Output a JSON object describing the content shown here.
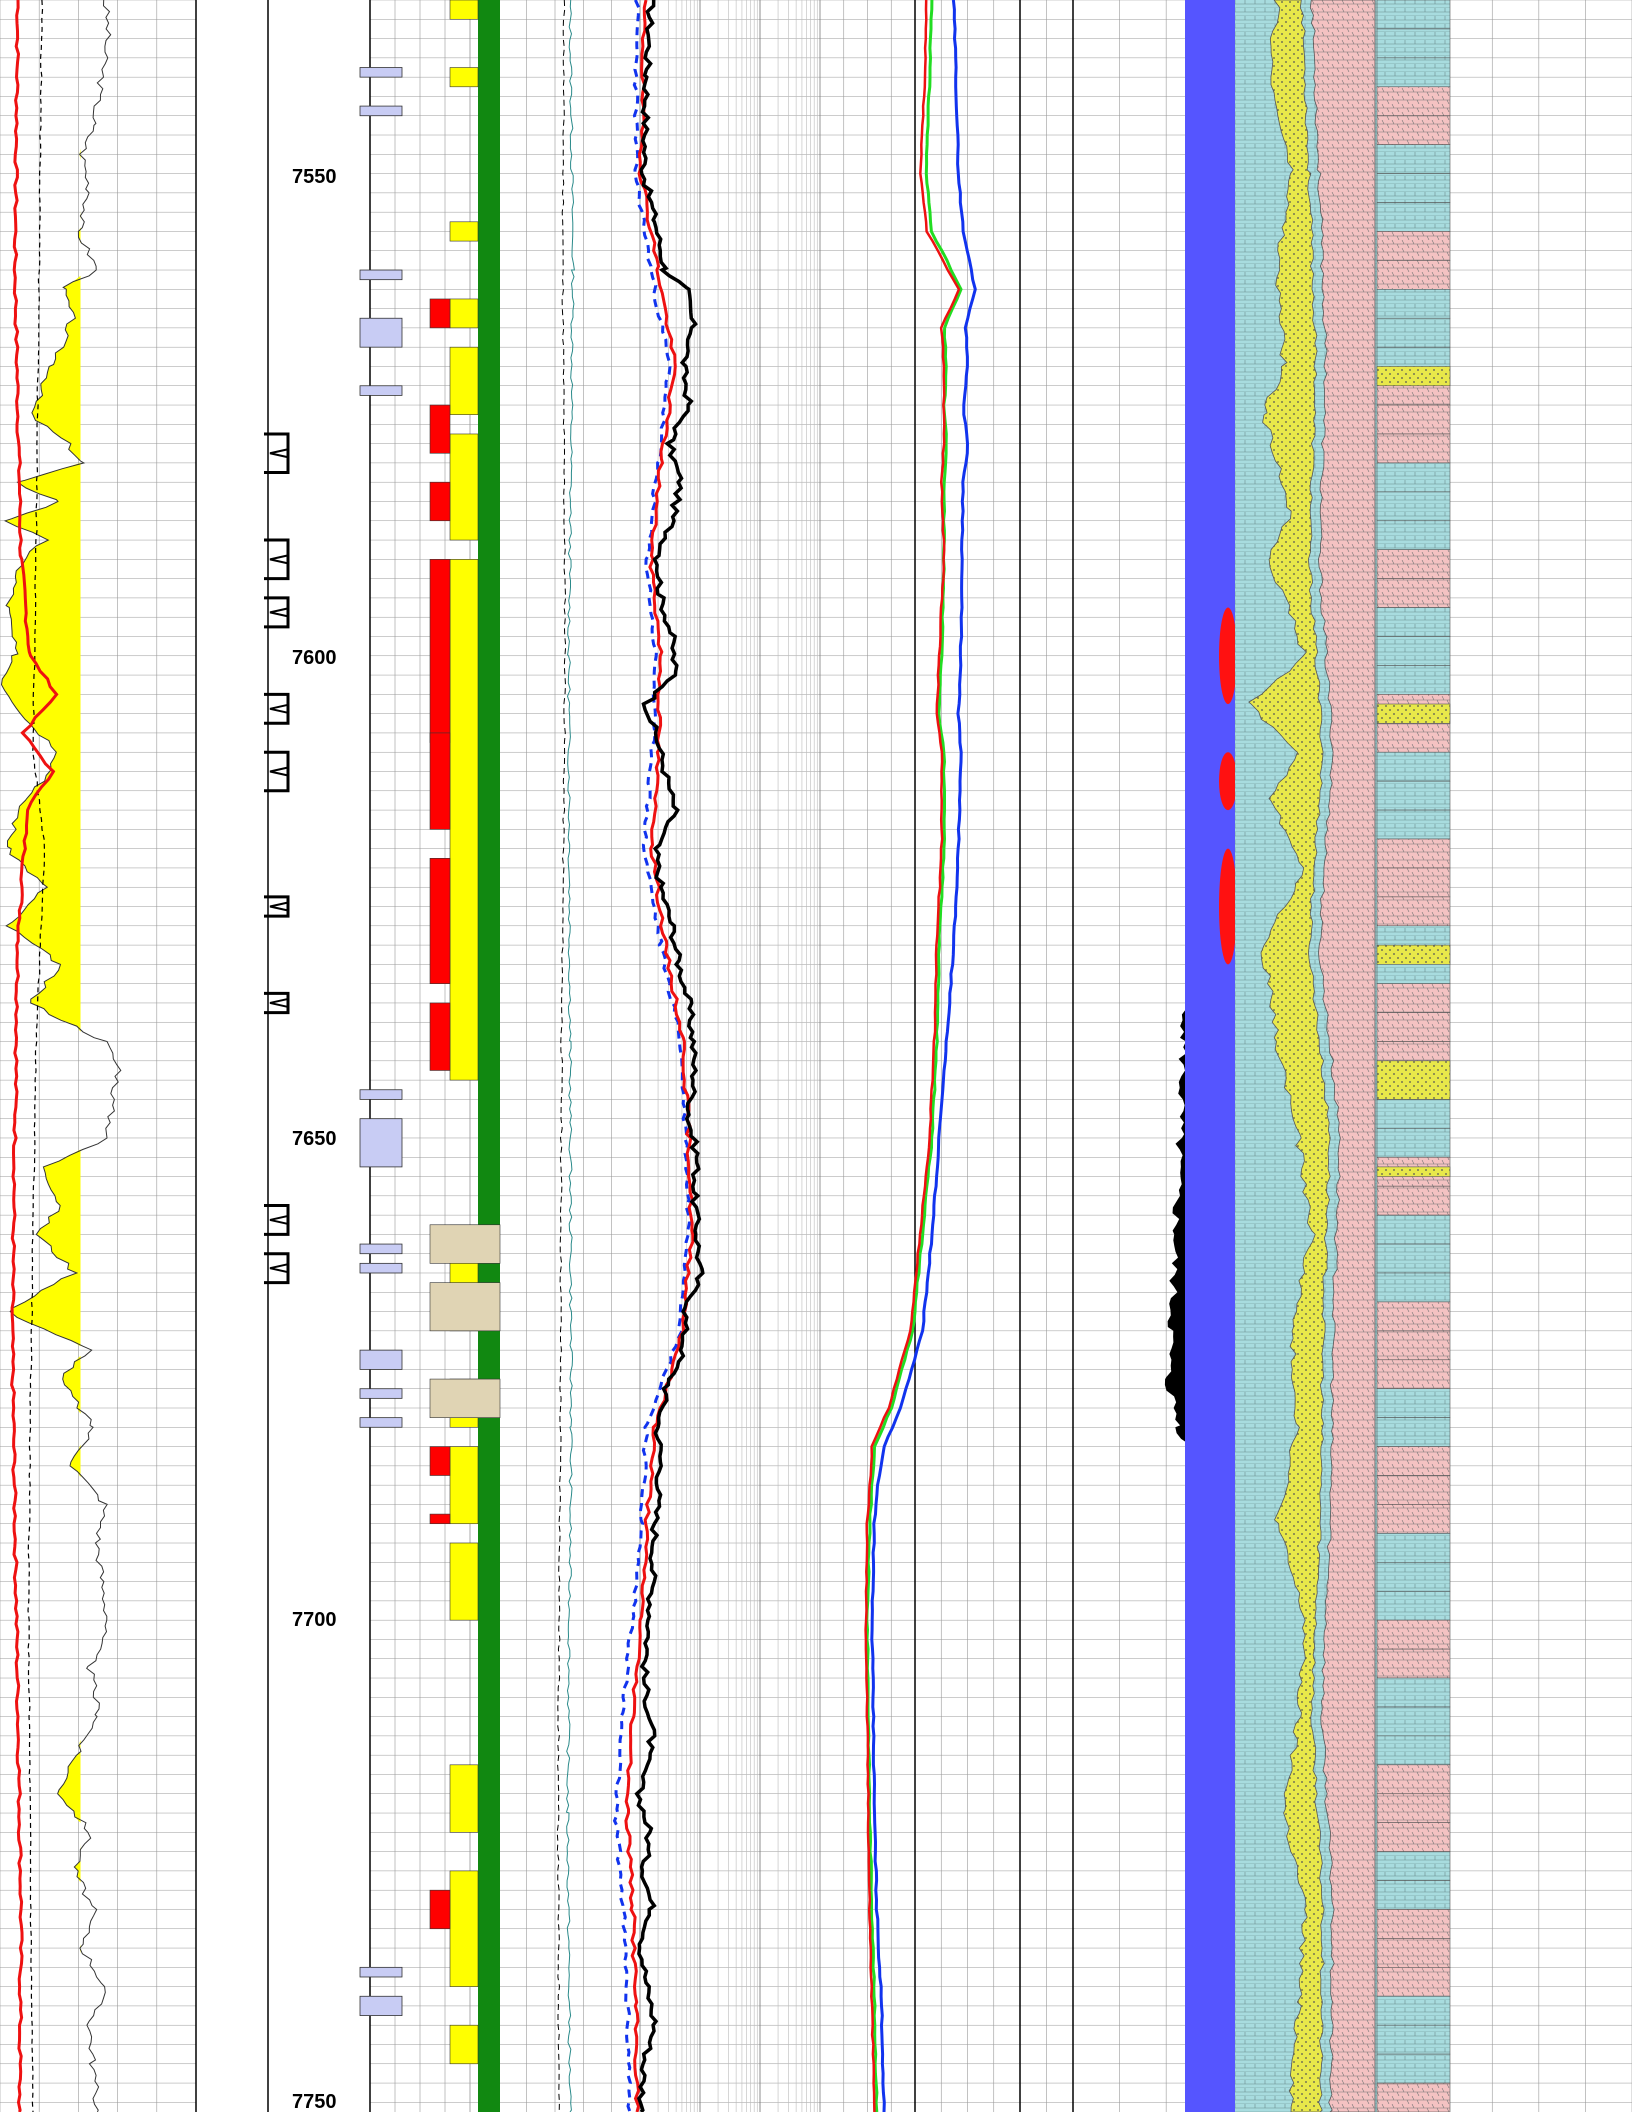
{
  "chart_data": {
    "type": "line",
    "title": "",
    "depth_ticks": [
      {
        "depth": 7550,
        "label": "7550"
      },
      {
        "depth": 7600,
        "label": "7600"
      },
      {
        "depth": 7650,
        "label": "7650"
      },
      {
        "depth": 7700,
        "label": "7700"
      },
      {
        "depth": 7750,
        "label": "7750"
      }
    ],
    "depth_range": [
      7532,
      7751
    ],
    "gamma_ray": {
      "cutoff": 0.55,
      "points": [
        [
          7532,
          0.7
        ],
        [
          7535,
          0.72
        ],
        [
          7540,
          0.68
        ],
        [
          7545,
          0.62
        ],
        [
          7548,
          0.55
        ],
        [
          7552,
          0.6
        ],
        [
          7556,
          0.52
        ],
        [
          7560,
          0.65
        ],
        [
          7562,
          0.42
        ],
        [
          7565,
          0.48
        ],
        [
          7570,
          0.35
        ],
        [
          7575,
          0.2
        ],
        [
          7578,
          0.45
        ],
        [
          7580,
          0.55
        ],
        [
          7582,
          0.1
        ],
        [
          7584,
          0.4
        ],
        [
          7586,
          0.05
        ],
        [
          7588,
          0.3
        ],
        [
          7590,
          0.15
        ],
        [
          7595,
          0.05
        ],
        [
          7600,
          0.1
        ],
        [
          7603,
          0.02
        ],
        [
          7607,
          0.2
        ],
        [
          7610,
          0.4
        ],
        [
          7613,
          0.3
        ],
        [
          7615,
          0.15
        ],
        [
          7620,
          0.05
        ],
        [
          7624,
          0.3
        ],
        [
          7628,
          0.05
        ],
        [
          7632,
          0.4
        ],
        [
          7636,
          0.2
        ],
        [
          7640,
          0.7
        ],
        [
          7643,
          0.8
        ],
        [
          7646,
          0.75
        ],
        [
          7650,
          0.72
        ],
        [
          7653,
          0.3
        ],
        [
          7657,
          0.4
        ],
        [
          7660,
          0.25
        ],
        [
          7664,
          0.5
        ],
        [
          7668,
          0.05
        ],
        [
          7672,
          0.6
        ],
        [
          7675,
          0.4
        ],
        [
          7680,
          0.62
        ],
        [
          7684,
          0.48
        ],
        [
          7688,
          0.7
        ],
        [
          7692,
          0.65
        ],
        [
          7696,
          0.68
        ],
        [
          7700,
          0.72
        ],
        [
          7705,
          0.6
        ],
        [
          7710,
          0.66
        ],
        [
          7714,
          0.5
        ],
        [
          7718,
          0.4
        ],
        [
          7722,
          0.6
        ],
        [
          7726,
          0.5
        ],
        [
          7730,
          0.62
        ],
        [
          7734,
          0.55
        ],
        [
          7738,
          0.7
        ],
        [
          7742,
          0.6
        ],
        [
          7746,
          0.62
        ],
        [
          7751,
          0.65
        ]
      ]
    },
    "caliper": [
      [
        7532,
        0.28
      ],
      [
        7560,
        0.26
      ],
      [
        7590,
        0.24
      ],
      [
        7610,
        0.22
      ],
      [
        7620,
        0.3
      ],
      [
        7640,
        0.24
      ],
      [
        7660,
        0.22
      ],
      [
        7680,
        0.2
      ],
      [
        7700,
        0.19
      ],
      [
        7720,
        0.2
      ],
      [
        7740,
        0.21
      ],
      [
        7751,
        0.22
      ]
    ],
    "sp": [
      [
        7532,
        0.12
      ],
      [
        7560,
        0.1
      ],
      [
        7590,
        0.14
      ],
      [
        7600,
        0.2
      ],
      [
        7604,
        0.38
      ],
      [
        7608,
        0.15
      ],
      [
        7612,
        0.35
      ],
      [
        7616,
        0.18
      ],
      [
        7630,
        0.12
      ],
      [
        7650,
        0.1
      ],
      [
        7670,
        0.08
      ],
      [
        7690,
        0.1
      ],
      [
        7710,
        0.12
      ],
      [
        7730,
        0.14
      ],
      [
        7751,
        0.13
      ]
    ],
    "perforations": [
      [
        7577,
        7581
      ],
      [
        7588,
        7592
      ],
      [
        7594,
        7597
      ],
      [
        7604,
        7607
      ],
      [
        7610,
        7614
      ],
      [
        7625,
        7627
      ],
      [
        7635,
        7637
      ],
      [
        7657,
        7660
      ],
      [
        7662,
        7665
      ]
    ],
    "core_intervals": [
      [
        7539,
        7540
      ],
      [
        7543,
        7544
      ],
      [
        7560,
        7561
      ],
      [
        7565,
        7568
      ],
      [
        7572,
        7573
      ],
      [
        7645,
        7646
      ],
      [
        7648,
        7653
      ],
      [
        7661,
        7662
      ],
      [
        7663,
        7664
      ],
      [
        7672,
        7674
      ],
      [
        7676,
        7677
      ],
      [
        7679,
        7680
      ],
      [
        7736,
        7737
      ],
      [
        7739,
        7741
      ]
    ],
    "facies_blocks": [
      {
        "from": 7532,
        "to": 7534,
        "color": "#ffff00"
      },
      {
        "from": 7539,
        "to": 7541,
        "color": "#ffff00"
      },
      {
        "from": 7555,
        "to": 7557,
        "color": "#ffff00"
      },
      {
        "from": 7563,
        "to": 7566,
        "color": "#ff0000"
      },
      {
        "from": 7563,
        "to": 7566,
        "color": "#ffff00"
      },
      {
        "from": 7574,
        "to": 7579,
        "color": "#ff0000"
      },
      {
        "from": 7582,
        "to": 7586,
        "color": "#ff0000"
      },
      {
        "from": 7590,
        "to": 7609,
        "color": "#ff0000"
      },
      {
        "from": 7608,
        "to": 7618,
        "color": "#ff0000"
      },
      {
        "from": 7621,
        "to": 7634,
        "color": "#ff0000"
      },
      {
        "from": 7636,
        "to": 7643,
        "color": "#ff0000"
      },
      {
        "from": 7659,
        "to": 7663,
        "color": "#e0d4b4"
      },
      {
        "from": 7665,
        "to": 7670,
        "color": "#e0d4b4"
      },
      {
        "from": 7675,
        "to": 7679,
        "color": "#e0d4b4"
      },
      {
        "from": 7682,
        "to": 7685,
        "color": "#ff0000"
      },
      {
        "from": 7689,
        "to": 7690,
        "color": "#ff0000"
      },
      {
        "from": 7728,
        "to": 7732,
        "color": "#ff0000"
      }
    ],
    "deep_res": [
      [
        7532,
        0.65
      ],
      [
        7540,
        0.62
      ],
      [
        7550,
        0.6
      ],
      [
        7555,
        0.68
      ],
      [
        7560,
        0.75
      ],
      [
        7562,
        0.9
      ],
      [
        7566,
        0.95
      ],
      [
        7570,
        0.88
      ],
      [
        7574,
        0.92
      ],
      [
        7578,
        0.78
      ],
      [
        7582,
        0.86
      ],
      [
        7586,
        0.8
      ],
      [
        7590,
        0.7
      ],
      [
        7594,
        0.72
      ],
      [
        7598,
        0.8
      ],
      [
        7602,
        0.82
      ],
      [
        7605,
        0.62
      ],
      [
        7609,
        0.7
      ],
      [
        7612,
        0.75
      ],
      [
        7616,
        0.82
      ],
      [
        7620,
        0.68
      ],
      [
        7624,
        0.72
      ],
      [
        7628,
        0.8
      ],
      [
        7632,
        0.85
      ],
      [
        7636,
        0.92
      ],
      [
        7640,
        0.95
      ],
      [
        7644,
        0.96
      ],
      [
        7648,
        0.92
      ],
      [
        7652,
        0.98
      ],
      [
        7656,
        0.96
      ],
      [
        7660,
        0.98
      ],
      [
        7664,
        1.0
      ],
      [
        7668,
        0.9
      ],
      [
        7672,
        0.88
      ],
      [
        7676,
        0.76
      ],
      [
        7680,
        0.7
      ],
      [
        7684,
        0.72
      ],
      [
        7690,
        0.68
      ],
      [
        7696,
        0.66
      ],
      [
        7700,
        0.64
      ],
      [
        7706,
        0.6
      ],
      [
        7712,
        0.66
      ],
      [
        7718,
        0.56
      ],
      [
        7722,
        0.64
      ],
      [
        7726,
        0.6
      ],
      [
        7730,
        0.66
      ],
      [
        7734,
        0.58
      ],
      [
        7738,
        0.62
      ],
      [
        7742,
        0.68
      ],
      [
        7746,
        0.6
      ],
      [
        7751,
        0.58
      ]
    ],
    "medium_res": [
      [
        7532,
        0.6
      ],
      [
        7550,
        0.58
      ],
      [
        7560,
        0.7
      ],
      [
        7570,
        0.82
      ],
      [
        7580,
        0.72
      ],
      [
        7590,
        0.65
      ],
      [
        7600,
        0.72
      ],
      [
        7610,
        0.7
      ],
      [
        7620,
        0.66
      ],
      [
        7630,
        0.75
      ],
      [
        7640,
        0.88
      ],
      [
        7650,
        0.92
      ],
      [
        7660,
        0.94
      ],
      [
        7670,
        0.88
      ],
      [
        7680,
        0.68
      ],
      [
        7690,
        0.62
      ],
      [
        7700,
        0.58
      ],
      [
        7710,
        0.52
      ],
      [
        7720,
        0.48
      ],
      [
        7730,
        0.52
      ],
      [
        7740,
        0.54
      ],
      [
        7751,
        0.55
      ]
    ],
    "shallow_res": [
      [
        7532,
        0.55
      ],
      [
        7550,
        0.54
      ],
      [
        7560,
        0.65
      ],
      [
        7570,
        0.78
      ],
      [
        7580,
        0.7
      ],
      [
        7590,
        0.62
      ],
      [
        7600,
        0.68
      ],
      [
        7610,
        0.66
      ],
      [
        7620,
        0.6
      ],
      [
        7630,
        0.72
      ],
      [
        7640,
        0.86
      ],
      [
        7650,
        0.9
      ],
      [
        7660,
        0.92
      ],
      [
        7670,
        0.86
      ],
      [
        7680,
        0.62
      ],
      [
        7690,
        0.58
      ],
      [
        7700,
        0.52
      ],
      [
        7710,
        0.44
      ],
      [
        7720,
        0.4
      ],
      [
        7730,
        0.45
      ],
      [
        7740,
        0.48
      ],
      [
        7751,
        0.5
      ]
    ],
    "density": [
      [
        7532,
        0.78
      ],
      [
        7540,
        0.8
      ],
      [
        7550,
        0.82
      ],
      [
        7556,
        0.86
      ],
      [
        7562,
        0.96
      ],
      [
        7566,
        0.88
      ],
      [
        7570,
        0.9
      ],
      [
        7574,
        0.86
      ],
      [
        7578,
        0.9
      ],
      [
        7582,
        0.86
      ],
      [
        7590,
        0.85
      ],
      [
        7600,
        0.84
      ],
      [
        7606,
        0.82
      ],
      [
        7610,
        0.84
      ],
      [
        7620,
        0.82
      ],
      [
        7630,
        0.78
      ],
      [
        7640,
        0.72
      ],
      [
        7650,
        0.66
      ],
      [
        7660,
        0.6
      ],
      [
        7670,
        0.52
      ],
      [
        7678,
        0.34
      ],
      [
        7682,
        0.2
      ],
      [
        7686,
        0.15
      ],
      [
        7690,
        0.12
      ],
      [
        7700,
        0.1
      ],
      [
        7710,
        0.11
      ],
      [
        7720,
        0.12
      ],
      [
        7730,
        0.14
      ],
      [
        7740,
        0.18
      ],
      [
        7751,
        0.2
      ]
    ],
    "neutron": [
      [
        7532,
        0.6
      ],
      [
        7540,
        0.58
      ],
      [
        7550,
        0.55
      ],
      [
        7556,
        0.6
      ],
      [
        7562,
        0.84
      ],
      [
        7566,
        0.7
      ],
      [
        7570,
        0.72
      ],
      [
        7574,
        0.7
      ],
      [
        7578,
        0.72
      ],
      [
        7582,
        0.7
      ],
      [
        7590,
        0.7
      ],
      [
        7600,
        0.68
      ],
      [
        7606,
        0.66
      ],
      [
        7610,
        0.7
      ],
      [
        7620,
        0.7
      ],
      [
        7630,
        0.66
      ],
      [
        7640,
        0.64
      ],
      [
        7650,
        0.6
      ],
      [
        7660,
        0.52
      ],
      [
        7670,
        0.44
      ],
      [
        7678,
        0.26
      ],
      [
        7682,
        0.12
      ],
      [
        7686,
        0.1
      ],
      [
        7690,
        0.08
      ],
      [
        7700,
        0.06
      ],
      [
        7710,
        0.07
      ],
      [
        7720,
        0.08
      ],
      [
        7730,
        0.1
      ],
      [
        7740,
        0.12
      ],
      [
        7751,
        0.14
      ]
    ],
    "pe": [
      [
        7532,
        0.55
      ],
      [
        7540,
        0.54
      ],
      [
        7550,
        0.5
      ],
      [
        7556,
        0.56
      ],
      [
        7562,
        0.82
      ],
      [
        7566,
        0.68
      ],
      [
        7570,
        0.7
      ],
      [
        7574,
        0.7
      ],
      [
        7578,
        0.7
      ],
      [
        7582,
        0.68
      ],
      [
        7590,
        0.7
      ],
      [
        7600,
        0.66
      ],
      [
        7606,
        0.64
      ],
      [
        7610,
        0.68
      ],
      [
        7620,
        0.68
      ],
      [
        7630,
        0.64
      ],
      [
        7640,
        0.62
      ],
      [
        7650,
        0.58
      ],
      [
        7660,
        0.5
      ],
      [
        7670,
        0.42
      ],
      [
        7678,
        0.24
      ],
      [
        7682,
        0.1
      ],
      [
        7686,
        0.08
      ],
      [
        7690,
        0.06
      ],
      [
        7700,
        0.05
      ],
      [
        7710,
        0.06
      ],
      [
        7720,
        0.07
      ],
      [
        7730,
        0.08
      ],
      [
        7740,
        0.1
      ],
      [
        7751,
        0.12
      ]
    ],
    "porosity": [
      [
        7532,
        0.82
      ],
      [
        7540,
        0.84
      ],
      [
        7550,
        0.8
      ],
      [
        7556,
        0.76
      ],
      [
        7560,
        0.72
      ],
      [
        7565,
        0.68
      ],
      [
        7570,
        0.7
      ],
      [
        7575,
        0.66
      ],
      [
        7580,
        0.68
      ],
      [
        7585,
        0.64
      ],
      [
        7590,
        0.62
      ],
      [
        7595,
        0.6
      ],
      [
        7600,
        0.62
      ],
      [
        7605,
        0.55
      ],
      [
        7610,
        0.6
      ],
      [
        7615,
        0.56
      ],
      [
        7620,
        0.58
      ],
      [
        7625,
        0.52
      ],
      [
        7630,
        0.5
      ],
      [
        7640,
        0.44
      ],
      [
        7650,
        0.42
      ],
      [
        7660,
        0.4
      ],
      [
        7670,
        0.38
      ],
      [
        7675,
        0.36
      ],
      [
        7680,
        0.42
      ],
      [
        7685,
        0.52
      ],
      [
        7690,
        0.56
      ],
      [
        7700,
        0.62
      ],
      [
        7710,
        0.7
      ],
      [
        7720,
        0.76
      ],
      [
        7730,
        0.8
      ],
      [
        7740,
        0.78
      ],
      [
        7751,
        0.74
      ]
    ],
    "bulk_volume_water": [
      [
        7532,
        0.55
      ],
      [
        7560,
        0.5
      ],
      [
        7580,
        0.48
      ],
      [
        7600,
        0.48
      ],
      [
        7620,
        0.5
      ],
      [
        7640,
        0.5
      ],
      [
        7660,
        0.5
      ],
      [
        7680,
        0.5
      ],
      [
        7700,
        0.5
      ],
      [
        7720,
        0.5
      ],
      [
        7740,
        0.5
      ],
      [
        7751,
        0.5
      ]
    ],
    "hydrocarbon_flags": [
      [
        7595,
        7605
      ],
      [
        7610,
        7616
      ],
      [
        7620,
        7632
      ]
    ],
    "lithology_sand": [
      [
        7532,
        0.3
      ],
      [
        7540,
        0.25
      ],
      [
        7550,
        0.4
      ],
      [
        7560,
        0.3
      ],
      [
        7570,
        0.35
      ],
      [
        7575,
        0.2
      ],
      [
        7585,
        0.4
      ],
      [
        7590,
        0.25
      ],
      [
        7600,
        0.5
      ],
      [
        7605,
        0.1
      ],
      [
        7610,
        0.45
      ],
      [
        7615,
        0.25
      ],
      [
        7622,
        0.5
      ],
      [
        7630,
        0.2
      ],
      [
        7640,
        0.3
      ],
      [
        7650,
        0.45
      ],
      [
        7660,
        0.55
      ],
      [
        7670,
        0.4
      ],
      [
        7680,
        0.45
      ],
      [
        7690,
        0.3
      ],
      [
        7700,
        0.5
      ],
      [
        7710,
        0.45
      ],
      [
        7720,
        0.35
      ],
      [
        7730,
        0.5
      ],
      [
        7740,
        0.45
      ],
      [
        7751,
        0.4
      ]
    ],
    "lithology_shale": [
      [
        7532,
        0.55
      ],
      [
        7550,
        0.6
      ],
      [
        7570,
        0.65
      ],
      [
        7590,
        0.6
      ],
      [
        7610,
        0.7
      ],
      [
        7630,
        0.6
      ],
      [
        7650,
        0.75
      ],
      [
        7670,
        0.7
      ],
      [
        7690,
        0.68
      ],
      [
        7710,
        0.62
      ],
      [
        7730,
        0.7
      ],
      [
        7751,
        0.68
      ]
    ],
    "facies_column_sand": [
      [
        7570,
        7572
      ],
      [
        7605,
        7607
      ],
      [
        7630,
        7632
      ],
      [
        7642,
        7646
      ],
      [
        7653,
        7654
      ]
    ]
  }
}
